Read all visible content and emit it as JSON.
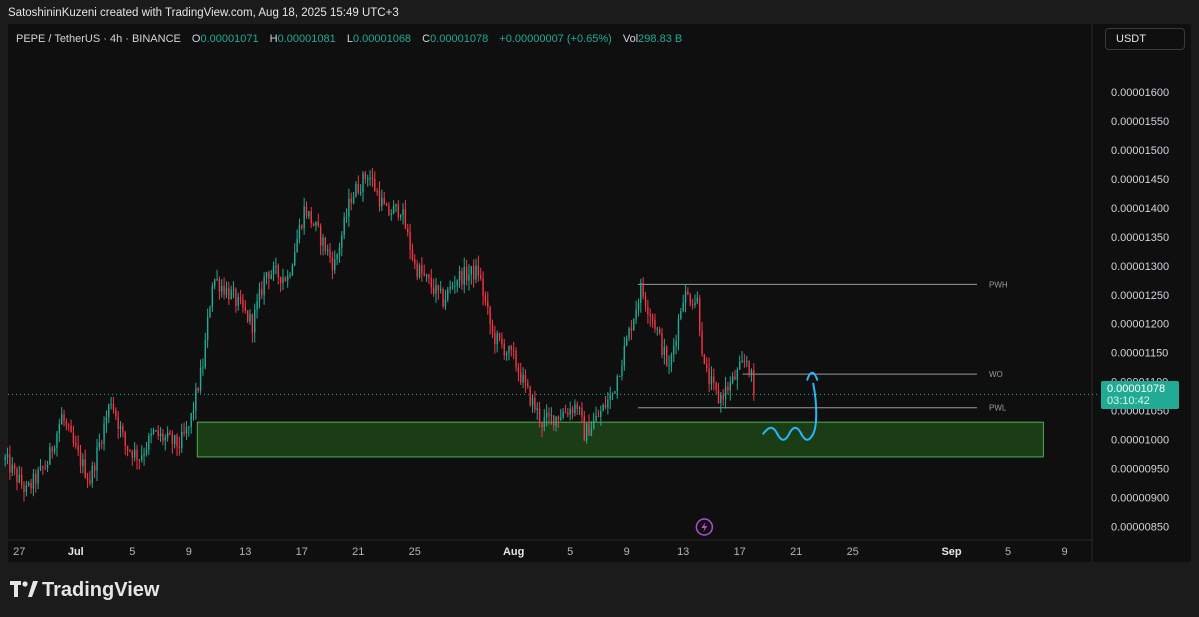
{
  "header": {
    "credit": "SatoshininKuzeni created with TradingView.com, Aug 18, 2025 15:49 UTC+3"
  },
  "legend": {
    "symbol": "PEPE / TetherUS · 4h · BINANCE",
    "o_label": "O",
    "o_value": "0.00001071",
    "h_label": "H",
    "h_value": "0.00001081",
    "l_label": "L",
    "l_value": "0.00001068",
    "c_label": "C",
    "c_value": "0.00001078",
    "change": "+0.00000007 (+0.65%)",
    "vol_label": "Vol",
    "vol_value": "298.83 B"
  },
  "currency_button": "USDT",
  "last_price": {
    "price": "0.00001078",
    "countdown": "03:10:42"
  },
  "brand": {
    "name": "TradingView",
    "logo": "tradingview-logo-icon"
  },
  "colors": {
    "up": "#22ab94",
    "down": "#f23645",
    "zone_fill": "#1f4d1a",
    "zone_border": "#4caf50",
    "annotation": "#29b6f6"
  },
  "chart_data": {
    "type": "candlestick",
    "timeframe": "4h",
    "y_unit": "USDT",
    "ylim": [
      8.3e-06,
      1.645e-05
    ],
    "y_ticks": [
      "0.00001600",
      "0.00001550",
      "0.00001500",
      "0.00001450",
      "0.00001400",
      "0.00001350",
      "0.00001300",
      "0.00001250",
      "0.00001200",
      "0.00001150",
      "0.00001100",
      "0.00001050",
      "0.00001000",
      "0.00000950",
      "0.00000900",
      "0.00000850"
    ],
    "x_ticks": [
      "27",
      "Jul",
      "5",
      "9",
      "13",
      "17",
      "21",
      "25",
      "Aug",
      "5",
      "9",
      "13",
      "17",
      "21",
      "25",
      "Sep",
      "5",
      "9"
    ],
    "x_tick_days": [
      -4,
      0,
      4,
      8,
      12,
      16,
      20,
      24,
      31,
      35,
      39,
      43,
      47,
      51,
      55,
      62,
      66,
      70
    ],
    "x_domain_days": [
      -4.8,
      71.8
    ],
    "last_candle_day": 48.1,
    "candles_per_day": 6,
    "path_anchors": [
      [
        -5,
        9.65e-06
      ],
      [
        -3.5,
        9.1e-06
      ],
      [
        -2,
        9.6e-06
      ],
      [
        -1,
        1.04e-05
      ],
      [
        0,
        9.8e-06
      ],
      [
        1,
        9.3e-06
      ],
      [
        2.5,
        1.07e-05
      ],
      [
        3.5,
        9.9e-06
      ],
      [
        4.5,
        9.7e-06
      ],
      [
        5.5,
        1.01e-05
      ],
      [
        7.3,
        9.9e-06
      ],
      [
        8,
        1.02e-05
      ],
      [
        9,
        1.13e-05
      ],
      [
        9.7,
        1.28e-05
      ],
      [
        11,
        1.25e-05
      ],
      [
        12.5,
        1.2e-05
      ],
      [
        13.5,
        1.29e-05
      ],
      [
        15,
        1.28e-05
      ],
      [
        16.2,
        1.4e-05
      ],
      [
        17.3,
        1.35e-05
      ],
      [
        18.3,
        1.3e-05
      ],
      [
        19.5,
        1.42e-05
      ],
      [
        20.7,
        1.46e-05
      ],
      [
        22,
        1.39e-05
      ],
      [
        23,
        1.4e-05
      ],
      [
        24,
        1.3e-05
      ],
      [
        26,
        1.24e-05
      ],
      [
        27,
        1.28e-05
      ],
      [
        28.5,
        1.29e-05
      ],
      [
        29.5,
        1.18e-05
      ],
      [
        31,
        1.14e-05
      ],
      [
        32,
        1.08e-05
      ],
      [
        33,
        1.03e-05
      ],
      [
        34,
        1.04e-05
      ],
      [
        35.5,
        1.06e-05
      ],
      [
        36,
        1.01e-05
      ],
      [
        37,
        1.04e-05
      ],
      [
        38,
        1.08e-05
      ],
      [
        39,
        1.17e-05
      ],
      [
        40,
        1.26e-05
      ],
      [
        41,
        1.2e-05
      ],
      [
        42,
        1.12e-05
      ],
      [
        43,
        1.25e-05
      ],
      [
        44,
        1.24e-05
      ],
      [
        44.5,
        1.12e-05
      ],
      [
        45.5,
        1.07e-05
      ],
      [
        46.5,
        1.1e-05
      ],
      [
        47.5,
        1.14e-05
      ],
      [
        48.1,
        1.078e-05
      ]
    ],
    "support_zone": {
      "y_low": 9.7e-06,
      "y_high": 1.03e-05,
      "day_start": 8.6,
      "day_end": 68.5
    },
    "levels": [
      {
        "label": "PWH",
        "y": 1.268e-05,
        "day_start": 39.8,
        "day_end": 63.8
      },
      {
        "label": "WO",
        "y": 1.113e-05,
        "day_start": 47.2,
        "day_end": 63.8
      },
      {
        "label": "PWL",
        "y": 1.055e-05,
        "day_start": 39.8,
        "day_end": 63.8
      }
    ],
    "last_price_line_y": 1.078e-05,
    "annotation": "projected-path-arrow"
  }
}
